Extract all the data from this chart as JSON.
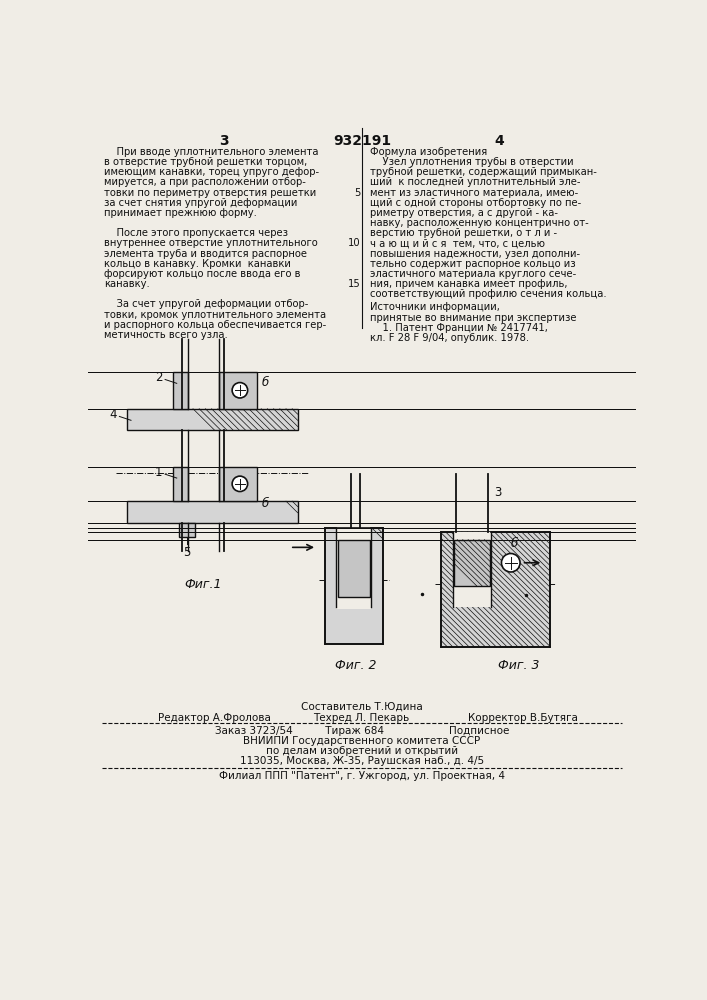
{
  "patent_number": "932191",
  "page_left": "3",
  "page_right": "4",
  "bg_color": "#f0ede6",
  "text_color": "#111111",
  "left_column_text": [
    "    При вводе уплотнительного элемента",
    "в отверстие трубной решетки торцом,",
    "имеющим канавки, торец упруго дефор-",
    "мируется, а при расположении отбор-",
    "товки по периметру отверстия решетки",
    "за счет снятия упругой деформации",
    "принимает прежнюю форму.",
    "",
    "    После этого пропускается через",
    "внутреннее отверстие уплотнительного",
    "элемента труба и вводится распорное",
    "кольцо в канавку. Кромки  канавки",
    "форсируют кольцо после ввода его в",
    "канавку.",
    "",
    "    За счет упругой деформации отбор-",
    "товки, кромок уплотнительного элемента",
    "и распорного кольца обеспечивается гер-",
    "метичность всего узла."
  ],
  "right_col_header": "Формула изобретения",
  "right_column_text": [
    "    Узел уплотнения трубы в отверстии",
    "трубной решетки, содержащий примыкан-",
    "ший  к последней уплотнительный эле-",
    "мент из эластичного материала, имею-",
    "щий с одной стороны отбортовку по пе-",
    "риметру отверстия, а с другой - ка-",
    "навку, расположенную концентрично от-",
    "верстию трубной решетки, о т л и -",
    "ч а ю щ и й с я  тем, что, с целью",
    "повышения надежности, узел дополни-",
    "тельно содержит распорное кольцо из",
    "эластичного материала круглого сече-",
    "ния, причем канавка имеет профиль,",
    "соответствующий профилю сечения кольца."
  ],
  "line_numbers": [
    [
      4,
      "5"
    ],
    [
      9,
      "10"
    ],
    [
      13,
      "15"
    ]
  ],
  "sources_header": "Источники информации,",
  "sources_text": [
    "принятые во внимание при экспертизе",
    "    1. Патент Франции № 2417741,",
    "кл. F 28 F 9/04, опублик. 1978."
  ],
  "fig1_label": "Фиг.1",
  "fig2_label": "Фиг. 2",
  "fig3_label": "Фиг. 3",
  "staff_composer": "Составитель Т.Юдина",
  "staff_editor": "Редактор А.Фролова",
  "staff_tech": "Техред Л. Пекарь",
  "staff_corrector": "Корректор В.Бутяга",
  "pub_line1": "Заказ 3723/54          Тираж 684                    Подписное",
  "pub_line2": "ВНИИПИ Государственного комитета СССР",
  "pub_line3": "по делам изобретений и открытий",
  "pub_line4": "113035, Москва, Ж-35, Раушская наб., д. 4/5",
  "pub_last": "Филиал ППП \"Патент\", г. Ужгород, ул. Проектная, 4"
}
